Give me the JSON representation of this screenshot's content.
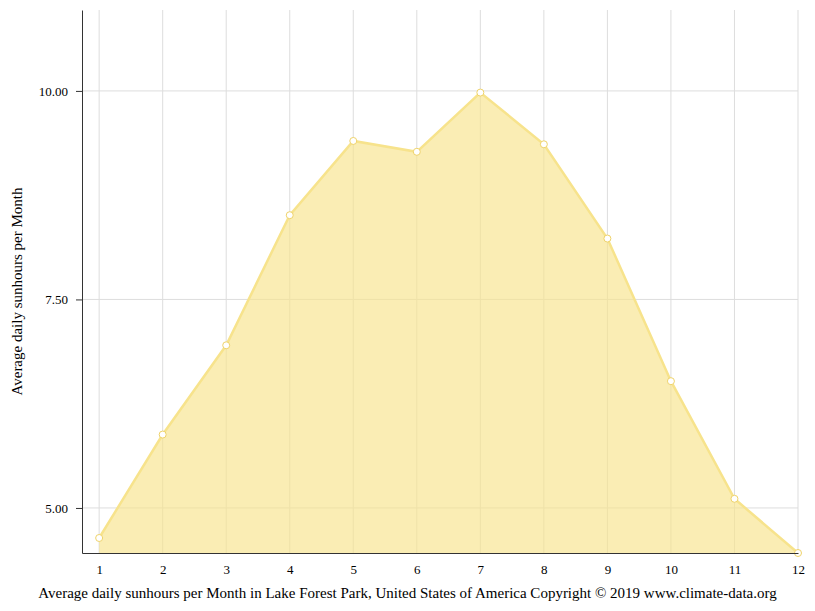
{
  "chart_data": {
    "type": "area",
    "title": "Average daily sunhours per Month in Lake Forest Park, United States of America Copyright © 2019 www.climate-data.org",
    "ylabel": "Average daily sunhours per Month",
    "x": [
      1,
      2,
      3,
      4,
      5,
      6,
      7,
      8,
      9,
      10,
      11,
      12
    ],
    "values": [
      4.64,
      5.88,
      6.95,
      8.51,
      9.4,
      9.27,
      9.98,
      9.36,
      8.23,
      6.52,
      5.11,
      4.46
    ],
    "color": "#f7e38c",
    "marker": "circle",
    "xlim": [
      0.73,
      12
    ],
    "xticks": [
      1,
      2,
      3,
      4,
      5,
      6,
      7,
      8,
      9,
      10,
      11,
      12
    ],
    "ylim": [
      4.46,
      10.97
    ],
    "yticks": [
      {
        "value": 5,
        "label": "5.00"
      },
      {
        "value": 7.5,
        "label": "7.50"
      },
      {
        "value": 10,
        "label": "10.00"
      }
    ],
    "grid": true
  }
}
